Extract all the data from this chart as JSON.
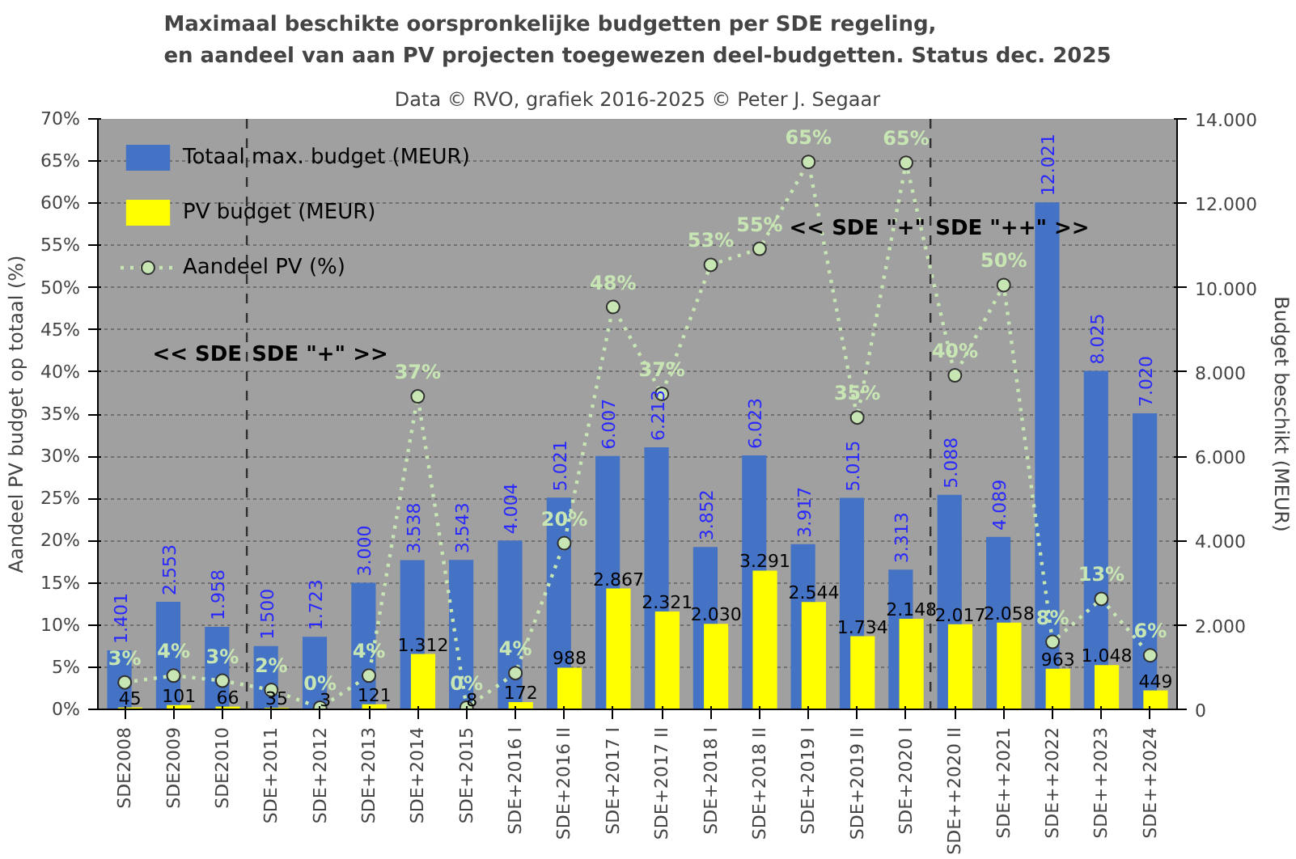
{
  "chart_data": {
    "type": "bar",
    "title": "Maximaal beschikte oorspronkelijke budgetten per SDE regeling,\nen aandeel van aan PV projecten toegewezen deel-budgetten. Status dec. 2025",
    "subtitle": "Data © RVO, grafiek 2016-2025 © Peter J. Segaar",
    "ylabel": "Aandeel PV budget op totaal (%)",
    "y2label": "Budget beschikt (MEUR)",
    "categories": [
      "SDE2008",
      "SDE2009",
      "SDE2010",
      "SDE+2011",
      "SDE+2012",
      "SDE+2013",
      "SDE+2014",
      "SDE+2015",
      "SDE+2016 I",
      "SDE+2016 II",
      "SDE+2017 I",
      "SDE+2017 II",
      "SDE+2018 I",
      "SDE+2018 II",
      "SDE+2019 I",
      "SDE+2019 II",
      "SDE+2020 I",
      "SDE++2020 II",
      "SDE++2021",
      "SDE++2022",
      "SDE++2023",
      "SDE++2024"
    ],
    "series": [
      {
        "name": "Totaal max. budget (MEUR)",
        "color": "#4472c4",
        "axis": "y2",
        "values": [
          1401,
          2553,
          1958,
          1500,
          1723,
          3000,
          3538,
          3543,
          4004,
          5021,
          6007,
          6213,
          3852,
          6023,
          3917,
          5015,
          3313,
          5088,
          4089,
          12021,
          8025,
          7020
        ],
        "value_labels": [
          "1.401",
          "2.553",
          "1.958",
          "1.500",
          "1.723",
          "3.000",
          "3.538",
          "3.543",
          "4.004",
          "5.021",
          "6.007",
          "6.213",
          "3.852",
          "6.023",
          "3.917",
          "5.015",
          "3.313",
          "5.088",
          "4.089",
          "12.021",
          "8.025",
          "7.020"
        ]
      },
      {
        "name": "PV budget (MEUR)",
        "color": "#ffff00",
        "axis": "y2",
        "values": [
          45,
          101,
          66,
          35,
          3,
          121,
          1312,
          8,
          172,
          988,
          2867,
          2321,
          2030,
          3291,
          2544,
          1734,
          2148,
          2017,
          2058,
          963,
          1048,
          449
        ],
        "value_labels": [
          "45",
          "101",
          "66",
          "35",
          "3",
          "121",
          "1.312",
          "8",
          "172",
          "988",
          "2.867",
          "2.321",
          "2.030",
          "3.291",
          "2.544",
          "1.734",
          "2.148",
          "2.017",
          "2.058",
          "963",
          "1.048",
          "449"
        ]
      },
      {
        "name": "Aandeel PV (%)",
        "type": "line",
        "color": "#c8e6b4",
        "values": [
          3.2,
          4.0,
          3.4,
          2.3,
          0.2,
          4.0,
          37.1,
          0.2,
          4.3,
          19.7,
          47.7,
          37.4,
          52.7,
          54.6,
          64.9,
          34.6,
          64.8,
          39.6,
          50.3,
          8.0,
          13.1,
          6.4
        ],
        "value_labels": [
          "3%",
          "4%",
          "3%",
          "2%",
          "0%",
          "4%",
          "37%",
          "0%",
          "4%",
          "20%",
          "48%",
          "37%",
          "53%",
          "55%",
          "65%",
          "35%",
          "65%",
          "40%",
          "50%",
          "8%",
          "13%",
          "6%"
        ]
      }
    ],
    "marker": "circle",
    "line_style": "dotted",
    "ylim": [
      0,
      70
    ],
    "yticks": [
      {
        "value": 0,
        "label": "0%"
      },
      {
        "value": 5,
        "label": "5%"
      },
      {
        "value": 10,
        "label": "10%"
      },
      {
        "value": 15,
        "label": "15%"
      },
      {
        "value": 20,
        "label": "20%"
      },
      {
        "value": 25,
        "label": "25%"
      },
      {
        "value": 30,
        "label": "30%"
      },
      {
        "value": 35,
        "label": "35%"
      },
      {
        "value": 40,
        "label": "40%"
      },
      {
        "value": 45,
        "label": "45%"
      },
      {
        "value": 50,
        "label": "50%"
      },
      {
        "value": 55,
        "label": "55%"
      },
      {
        "value": 60,
        "label": "60%"
      },
      {
        "value": 65,
        "label": "65%"
      },
      {
        "value": 70,
        "label": "70%"
      }
    ],
    "y2lim": [
      0,
      14000
    ],
    "y2ticks": [
      0,
      {
        "value": 2000,
        "label": "2.000"
      },
      {
        "value": 4000,
        "label": "4.000"
      },
      {
        "value": 6000,
        "label": "6.000"
      },
      {
        "value": 8000,
        "label": "8.000"
      },
      {
        "value": 10000,
        "label": "10.000"
      },
      {
        "value": 12000,
        "label": "12.000"
      },
      {
        "value": 14000,
        "label": "14.000"
      }
    ],
    "annotations": [
      "<< SDE",
      "SDE \"+\" >>",
      "<< SDE \"+\"",
      "SDE \"++\" >>"
    ],
    "grid": "y",
    "legend": "top left"
  }
}
